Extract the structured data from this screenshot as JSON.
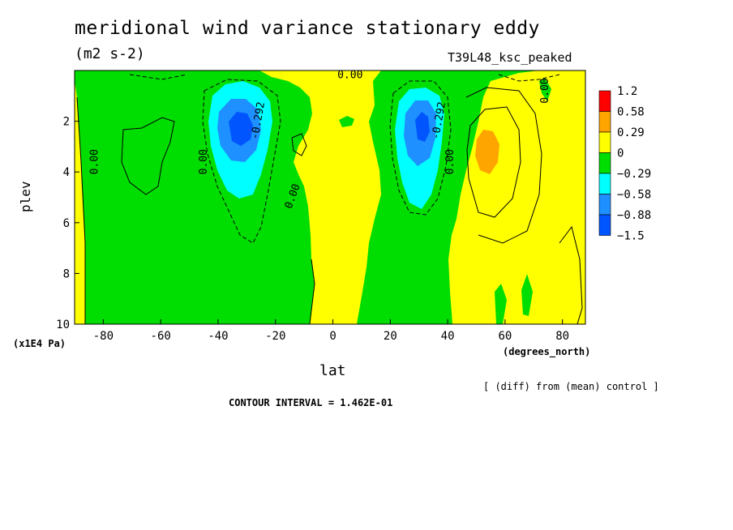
{
  "chart_data": {
    "type": "heatmap",
    "title": "meridional wind variance  stationary eddy",
    "subtitle": "(m2 s-2)",
    "run_label": "T39L48_ksc_peaked",
    "xlabel": "lat",
    "x_units": "(degrees_north)",
    "ylabel": "plev",
    "y_units": "(x1E4 Pa)",
    "xlim": [
      -90,
      88
    ],
    "ylim": [
      10,
      0
    ],
    "x_ticks": [
      -80,
      -60,
      -40,
      -20,
      0,
      20,
      40,
      60,
      80
    ],
    "y_ticks": [
      2,
      4,
      6,
      8,
      10
    ],
    "colorbar": {
      "labels": [
        "1.2",
        "0.58",
        "0.29",
        "0",
        "−0.29",
        "−0.58",
        "−0.88",
        "−1.5"
      ],
      "colors": [
        "#ff0000",
        "#ffa500",
        "#ffff00",
        "#00dd00",
        "#00ffff",
        "#1e90ff",
        "#0055ff"
      ]
    },
    "contour_labels": [
      {
        "text": "0.00",
        "lat": -82,
        "plev": 3.6,
        "rot": -90
      },
      {
        "text": "0.00",
        "lat": -44,
        "plev": 3.6,
        "rot": -90
      },
      {
        "text": "0.00",
        "lat": -13,
        "plev": 5.0,
        "rot": -70
      },
      {
        "text": "0.00",
        "lat": 6,
        "plev": 0.3,
        "rot": 0
      },
      {
        "text": "-0.292",
        "lat": -25,
        "plev": 2.0,
        "rot": -80
      },
      {
        "text": "-0.292",
        "lat": 38,
        "plev": 2.0,
        "rot": -80
      },
      {
        "text": "0.00",
        "lat": 42,
        "plev": 3.6,
        "rot": -90
      },
      {
        "text": "0.00",
        "lat": 75,
        "plev": 0.8,
        "rot": -90
      }
    ],
    "annotations": {
      "diff_note": "[ (diff) from (mean) control ]",
      "contour_interval": "CONTOUR INTERVAL = 1.462E-01"
    }
  }
}
